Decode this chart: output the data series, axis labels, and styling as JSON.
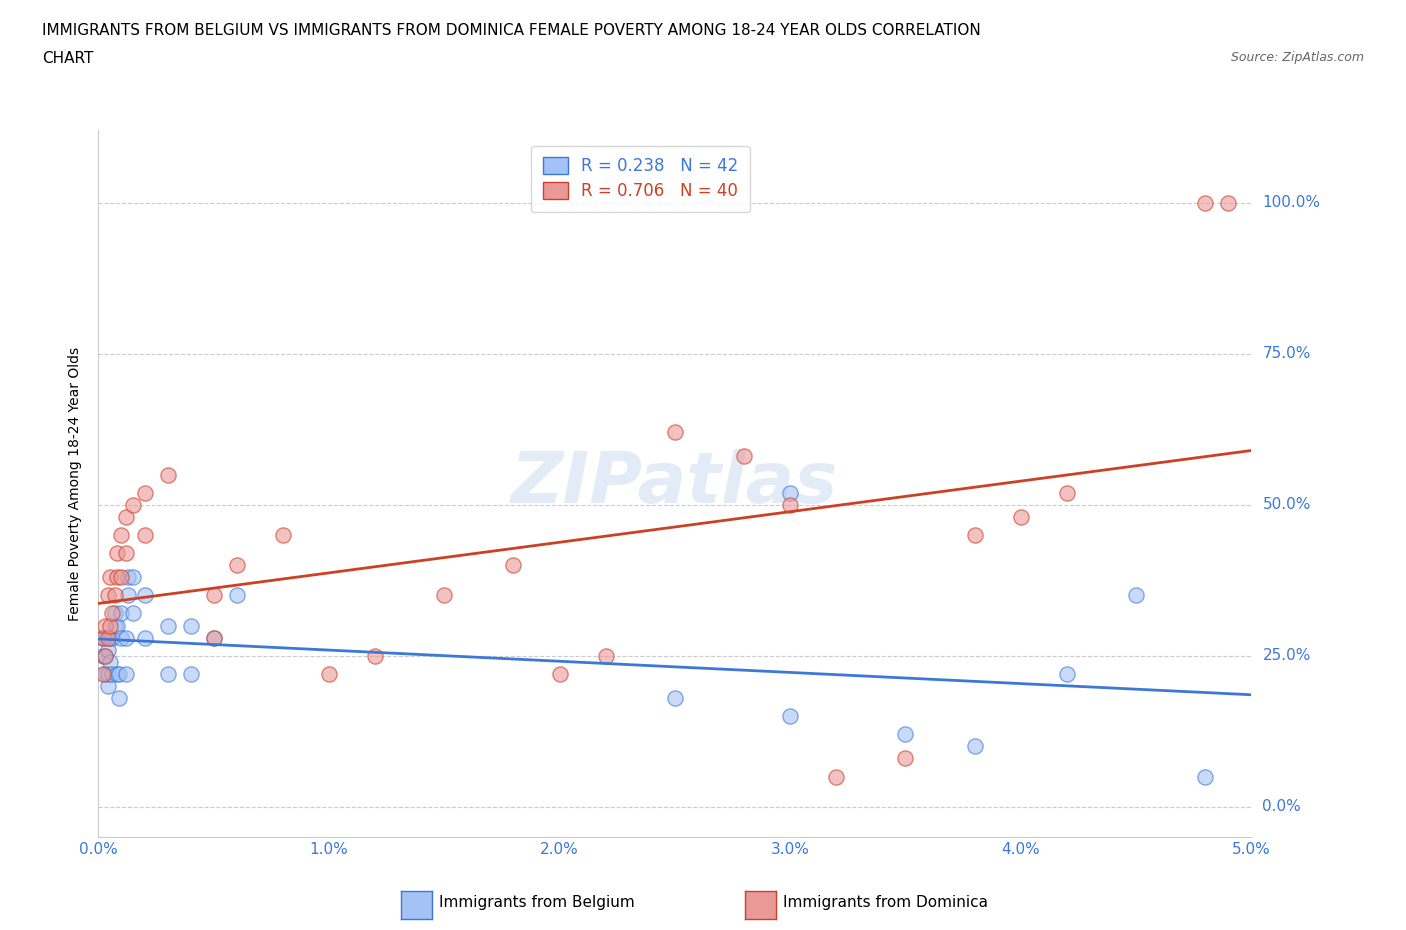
{
  "title_line1": "IMMIGRANTS FROM BELGIUM VS IMMIGRANTS FROM DOMINICA FEMALE POVERTY AMONG 18-24 YEAR OLDS CORRELATION",
  "title_line2": "CHART",
  "source": "Source: ZipAtlas.com",
  "ylabel": "Female Poverty Among 18-24 Year Olds",
  "xlim": [
    0.0,
    0.05
  ],
  "ylim": [
    -0.05,
    1.12
  ],
  "yticks": [
    0.0,
    0.25,
    0.5,
    0.75,
    1.0
  ],
  "ytick_labels": [
    "0.0%",
    "25.0%",
    "50.0%",
    "75.0%",
    "100.0%"
  ],
  "xticks": [
    0.0,
    0.01,
    0.02,
    0.03,
    0.04,
    0.05
  ],
  "xtick_labels": [
    "0.0%",
    "1.0%",
    "2.0%",
    "3.0%",
    "4.0%",
    "5.0%"
  ],
  "belgium_color": "#a4c2f4",
  "dominica_color": "#ea9999",
  "trendline_belgium_color": "#3c78d8",
  "trendline_dominica_color": "#cc4125",
  "legend_R_belgium": "R = 0.238",
  "legend_N_belgium": "N = 42",
  "legend_R_dominica": "R = 0.706",
  "legend_N_dominica": "N = 40",
  "watermark": "ZIPatlas",
  "belgium_x": [
    0.0002,
    0.0002,
    0.0003,
    0.0003,
    0.0003,
    0.0004,
    0.0004,
    0.0004,
    0.0005,
    0.0005,
    0.0006,
    0.0006,
    0.0007,
    0.0007,
    0.0008,
    0.0008,
    0.0009,
    0.0009,
    0.001,
    0.001,
    0.0012,
    0.0012,
    0.0013,
    0.0013,
    0.0015,
    0.0015,
    0.002,
    0.002,
    0.003,
    0.003,
    0.004,
    0.004,
    0.005,
    0.006,
    0.025,
    0.03,
    0.035,
    0.038,
    0.03,
    0.042,
    0.045,
    0.048
  ],
  "belgium_y": [
    0.25,
    0.28,
    0.22,
    0.25,
    0.28,
    0.2,
    0.22,
    0.26,
    0.24,
    0.28,
    0.22,
    0.28,
    0.3,
    0.32,
    0.22,
    0.3,
    0.18,
    0.22,
    0.28,
    0.32,
    0.22,
    0.28,
    0.35,
    0.38,
    0.32,
    0.38,
    0.28,
    0.35,
    0.22,
    0.3,
    0.22,
    0.3,
    0.28,
    0.35,
    0.18,
    0.15,
    0.12,
    0.1,
    0.52,
    0.22,
    0.35,
    0.05
  ],
  "dominica_x": [
    0.0002,
    0.0002,
    0.0003,
    0.0003,
    0.0004,
    0.0004,
    0.0005,
    0.0005,
    0.0006,
    0.0007,
    0.0008,
    0.0008,
    0.001,
    0.001,
    0.0012,
    0.0012,
    0.0015,
    0.002,
    0.002,
    0.003,
    0.005,
    0.005,
    0.006,
    0.008,
    0.01,
    0.012,
    0.015,
    0.018,
    0.02,
    0.022,
    0.032,
    0.035,
    0.048,
    0.049,
    0.025,
    0.028,
    0.03,
    0.038,
    0.04,
    0.042
  ],
  "dominica_y": [
    0.22,
    0.28,
    0.25,
    0.3,
    0.28,
    0.35,
    0.3,
    0.38,
    0.32,
    0.35,
    0.38,
    0.42,
    0.38,
    0.45,
    0.42,
    0.48,
    0.5,
    0.45,
    0.52,
    0.55,
    0.28,
    0.35,
    0.4,
    0.45,
    0.22,
    0.25,
    0.35,
    0.4,
    0.22,
    0.25,
    0.05,
    0.08,
    1.0,
    1.0,
    0.62,
    0.58,
    0.5,
    0.45,
    0.48,
    0.52
  ]
}
